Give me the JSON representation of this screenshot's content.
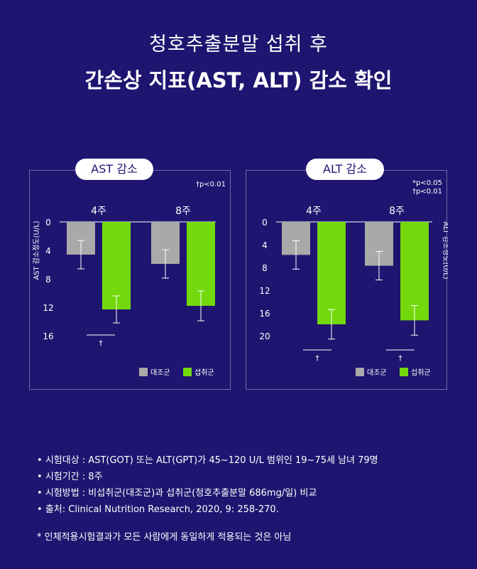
{
  "title_line1": "청호추출분말 섭취 후",
  "title_line2": "간손상 지표(AST, ALT) 감소 확인",
  "chart_data": [
    {
      "type": "bar",
      "title": "AST 감소",
      "ylabel": "AST 감소정도(U/L)",
      "ylim": [
        0,
        16
      ],
      "yticks": [
        "0",
        "4",
        "8",
        "12",
        "16"
      ],
      "categories": [
        "4주",
        "8주"
      ],
      "series": [
        {
          "name": "대조군",
          "color": "#a9a9a9",
          "values": [
            4.6,
            5.9
          ],
          "errors": [
            2.0,
            2.0
          ]
        },
        {
          "name": "섭취군",
          "color": "#73d90c",
          "values": [
            12.3,
            11.8
          ],
          "errors": [
            1.9,
            2.1
          ]
        }
      ],
      "significance_note": "†p<0.01",
      "significance_marks": [
        "†"
      ],
      "legend_position": "bottom-right"
    },
    {
      "type": "bar",
      "title": "ALT 감소",
      "ylabel": "ALT 감소정도(U/L)",
      "ylim": [
        0,
        20
      ],
      "yticks": [
        "0",
        "4",
        "8",
        "12",
        "16",
        "20"
      ],
      "categories": [
        "4주",
        "8주"
      ],
      "series": [
        {
          "name": "대조군",
          "color": "#a9a9a9",
          "values": [
            5.8,
            7.7
          ],
          "errors": [
            2.5,
            2.5
          ]
        },
        {
          "name": "섭취군",
          "color": "#73d90c",
          "values": [
            18.0,
            17.3
          ],
          "errors": [
            2.6,
            2.6
          ]
        }
      ],
      "significance_note": "*p<0.05\n†p<0.01",
      "significance_marks": [
        "†",
        "†"
      ],
      "legend_position": "bottom-right"
    }
  ],
  "notes": [
    "시험대상 : AST(GOT) 또는 ALT(GPT)가 45~120 U/L 범위인 19~75세 남녀 79명",
    "시험기간 : 8주",
    "시험방법 : 비섭취군(대조군)과 섭취군(청호추출분말 686mg/일) 비교",
    "출처: Clinical Nutrition Research, 2020, 9: 258-270."
  ],
  "disclaimer": "* 인체적용시험결과가 모든 사람에게 동일하게 적용되는 것은 아님"
}
